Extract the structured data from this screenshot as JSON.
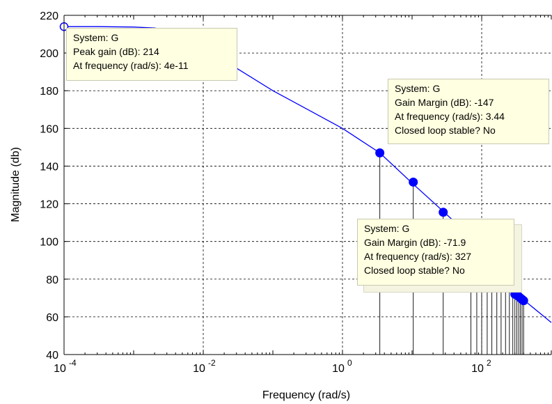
{
  "chart_data": {
    "type": "line",
    "xlabel": "Frequency  (rad/s)",
    "ylabel": "Magnitude (db)",
    "xscale": "log",
    "xlim": [
      0.0001,
      1000
    ],
    "ylim": [
      40,
      220
    ],
    "grid": true,
    "line_color": "#0000ff",
    "x_ticks": [
      {
        "base": "10",
        "exp": "-4",
        "value": 0.0001
      },
      {
        "base": "10",
        "exp": "-2",
        "value": 0.01
      },
      {
        "base": "10",
        "exp": "0",
        "value": 1
      },
      {
        "base": "10",
        "exp": "2",
        "value": 100
      }
    ],
    "y_ticks": [
      40,
      60,
      80,
      100,
      120,
      140,
      160,
      180,
      200,
      220
    ],
    "y_tick_labels": [
      "40",
      "60",
      "80",
      "100",
      "120",
      "140",
      "160",
      "180",
      "200",
      "220"
    ],
    "series": [
      {
        "x": [
          0.0001,
          0.0003,
          0.001,
          0.002,
          0.003,
          0.01,
          0.03,
          0.1,
          0.3,
          1,
          3.44,
          10,
          30,
          100,
          327,
          400,
          1000
        ],
        "y": [
          214,
          214,
          213.8,
          213.3,
          212,
          203,
          192,
          180,
          170.5,
          160,
          147,
          131,
          115,
          97,
          72,
          69,
          57
        ]
      }
    ],
    "markers": [
      {
        "x": 3.44,
        "y": 147
      },
      {
        "x": 10.4,
        "y": 131.5
      },
      {
        "x": 28,
        "y": 115.5
      },
      {
        "x": 300,
        "y": 72
      },
      {
        "x": 320,
        "y": 71.5
      },
      {
        "x": 340,
        "y": 70.8
      },
      {
        "x": 360,
        "y": 70
      },
      {
        "x": 380,
        "y": 69.3
      },
      {
        "x": 400,
        "y": 68.6
      }
    ],
    "stem_x": [
      3.44,
      10.4,
      28,
      70,
      85,
      100,
      120,
      140,
      165,
      190,
      220,
      250,
      280,
      300,
      320,
      340,
      360,
      380,
      400
    ],
    "peak_marker": {
      "x": 0.0001,
      "y": 214
    },
    "datatips": [
      {
        "lines": [
          "System: G",
          "Peak gain (dB): 214",
          "At frequency (rad/s): 4e-11"
        ]
      },
      {
        "lines": [
          "System: G",
          "Gain Margin (dB): -147",
          "At frequency (rad/s): 3.44",
          "Closed loop stable? No"
        ]
      },
      {
        "lines": [
          "System: G",
          "Gain Margin (dB): -71.9",
          "At frequency (rad/s): 327",
          "Closed loop stable? No"
        ]
      }
    ]
  }
}
